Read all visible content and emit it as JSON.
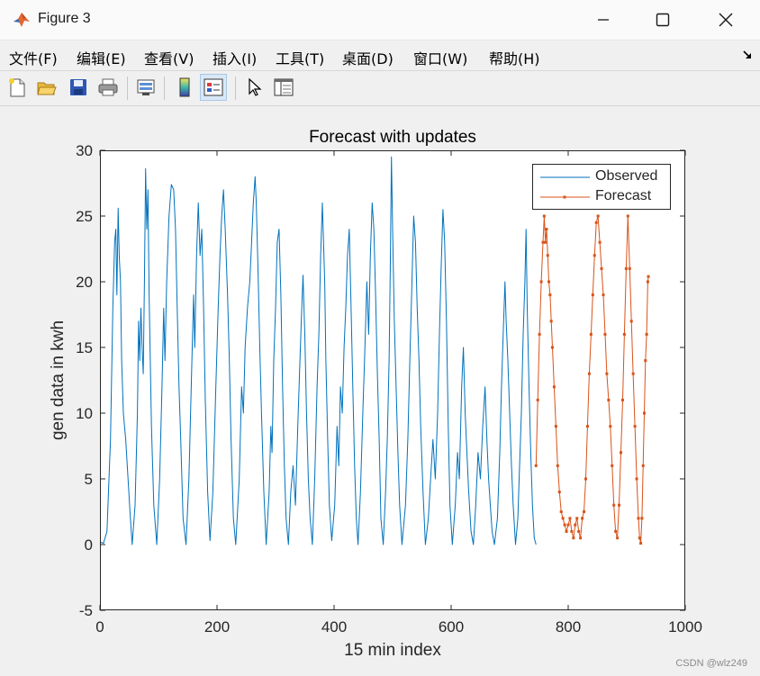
{
  "window": {
    "title": "Figure 3",
    "controls": [
      "minimize-icon",
      "maximize-icon",
      "close-icon"
    ]
  },
  "menubar": {
    "items": [
      "文件(F)",
      "编辑(E)",
      "查看(V)",
      "插入(I)",
      "工具(T)",
      "桌面(D)",
      "窗口(W)",
      "帮助(H)"
    ]
  },
  "toolbar": {
    "buttons": [
      "new-figure-icon",
      "open-folder-icon",
      "save-icon",
      "print-icon",
      "link-plot-icon",
      "colorbar-icon",
      "legend-icon",
      "pointer-icon",
      "property-editor-icon"
    ]
  },
  "colors": {
    "observed": "#0072BD",
    "forecast": "#D95319"
  },
  "watermark": "CSDN @wlz249",
  "chart_data": {
    "type": "line",
    "title": "Forecast with updates",
    "xlabel": "15 min index",
    "ylabel": "gen data in kwh",
    "xlim": [
      0,
      1000
    ],
    "ylim": [
      -5,
      30
    ],
    "xticks": [
      0,
      200,
      400,
      600,
      800,
      1000
    ],
    "yticks": [
      -5,
      0,
      5,
      10,
      15,
      20,
      25,
      30
    ],
    "grid": false,
    "legend_position": "top-right",
    "series": [
      {
        "name": "Observed",
        "marker": "none",
        "points": [
          [
            0,
            0.2
          ],
          [
            6,
            0.1
          ],
          [
            12,
            1
          ],
          [
            18,
            8
          ],
          [
            22,
            18
          ],
          [
            25,
            23
          ],
          [
            27,
            24
          ],
          [
            29,
            19
          ],
          [
            31,
            25.6
          ],
          [
            33,
            22
          ],
          [
            35,
            20
          ],
          [
            37,
            14
          ],
          [
            40,
            10
          ],
          [
            44,
            8
          ],
          [
            48,
            5
          ],
          [
            52,
            2
          ],
          [
            55,
            0
          ],
          [
            60,
            3
          ],
          [
            64,
            10
          ],
          [
            66,
            17
          ],
          [
            68,
            14
          ],
          [
            70,
            18
          ],
          [
            72,
            15
          ],
          [
            74,
            13
          ],
          [
            76,
            20
          ],
          [
            78,
            28.6
          ],
          [
            80,
            24
          ],
          [
            82,
            27
          ],
          [
            84,
            19
          ],
          [
            86,
            14
          ],
          [
            88,
            9
          ],
          [
            92,
            3
          ],
          [
            97,
            0
          ],
          [
            102,
            5
          ],
          [
            106,
            12
          ],
          [
            109,
            18
          ],
          [
            111,
            14
          ],
          [
            114,
            20
          ],
          [
            118,
            25
          ],
          [
            122,
            27.4
          ],
          [
            126,
            27
          ],
          [
            129,
            24
          ],
          [
            132,
            18
          ],
          [
            135,
            12
          ],
          [
            138,
            8
          ],
          [
            142,
            2
          ],
          [
            147,
            0
          ],
          [
            152,
            5
          ],
          [
            157,
            14
          ],
          [
            160,
            19
          ],
          [
            162,
            15
          ],
          [
            165,
            22
          ],
          [
            168,
            26
          ],
          [
            171,
            22
          ],
          [
            174,
            24
          ],
          [
            177,
            18
          ],
          [
            180,
            11
          ],
          [
            184,
            4
          ],
          [
            188,
            0.3
          ],
          [
            193,
            4
          ],
          [
            198,
            12
          ],
          [
            202,
            18
          ],
          [
            205,
            22
          ],
          [
            208,
            25
          ],
          [
            211,
            27
          ],
          [
            214,
            24
          ],
          [
            218,
            19
          ],
          [
            221,
            14
          ],
          [
            224,
            8
          ],
          [
            228,
            2
          ],
          [
            232,
            0
          ],
          [
            238,
            5
          ],
          [
            242,
            12
          ],
          [
            245,
            10
          ],
          [
            248,
            15
          ],
          [
            252,
            18
          ],
          [
            256,
            20
          ],
          [
            259,
            23
          ],
          [
            262,
            26
          ],
          [
            265,
            28
          ],
          [
            267,
            26
          ],
          [
            270,
            21
          ],
          [
            273,
            15
          ],
          [
            276,
            10
          ],
          [
            280,
            4
          ],
          [
            284,
            0
          ],
          [
            289,
            4
          ],
          [
            292,
            9
          ],
          [
            294,
            7
          ],
          [
            297,
            14
          ],
          [
            300,
            18
          ],
          [
            303,
            23
          ],
          [
            306,
            24
          ],
          [
            309,
            19
          ],
          [
            312,
            12
          ],
          [
            315,
            6
          ],
          [
            318,
            2
          ],
          [
            322,
            0
          ],
          [
            326,
            4
          ],
          [
            330,
            6
          ],
          [
            334,
            3
          ],
          [
            338,
            9
          ],
          [
            341,
            13
          ],
          [
            344,
            17
          ],
          [
            347,
            20.5
          ],
          [
            350,
            16
          ],
          [
            353,
            10
          ],
          [
            356,
            5
          ],
          [
            359,
            2
          ],
          [
            363,
            0
          ],
          [
            367,
            5
          ],
          [
            371,
            12
          ],
          [
            374,
            16
          ],
          [
            377,
            22
          ],
          [
            380,
            26
          ],
          [
            382,
            23
          ],
          [
            384,
            20
          ],
          [
            386,
            14
          ],
          [
            389,
            8
          ],
          [
            392,
            3
          ],
          [
            396,
            0.3
          ],
          [
            401,
            3
          ],
          [
            405,
            9
          ],
          [
            408,
            6
          ],
          [
            411,
            12
          ],
          [
            414,
            10
          ],
          [
            417,
            15
          ],
          [
            420,
            18
          ],
          [
            423,
            22
          ],
          [
            426,
            24
          ],
          [
            429,
            18
          ],
          [
            432,
            12
          ],
          [
            435,
            6
          ],
          [
            438,
            2
          ],
          [
            441,
            0
          ],
          [
            445,
            4
          ],
          [
            449,
            10
          ],
          [
            452,
            14
          ],
          [
            456,
            20
          ],
          [
            459,
            16
          ],
          [
            462,
            22
          ],
          [
            465,
            26
          ],
          [
            468,
            24
          ],
          [
            471,
            19
          ],
          [
            474,
            13
          ],
          [
            477,
            8
          ],
          [
            480,
            2
          ],
          [
            484,
            0
          ],
          [
            488,
            4
          ],
          [
            491,
            8
          ],
          [
            494,
            14
          ],
          [
            496,
            21
          ],
          [
            498,
            29.5
          ],
          [
            500,
            24
          ],
          [
            503,
            17
          ],
          [
            506,
            12
          ],
          [
            509,
            7
          ],
          [
            512,
            3
          ],
          [
            516,
            0
          ],
          [
            522,
            3
          ],
          [
            526,
            8
          ],
          [
            530,
            15
          ],
          [
            533,
            20
          ],
          [
            536,
            25
          ],
          [
            539,
            23
          ],
          [
            542,
            18
          ],
          [
            545,
            14
          ],
          [
            548,
            9
          ],
          [
            552,
            4
          ],
          [
            556,
            0
          ],
          [
            561,
            2
          ],
          [
            565,
            5
          ],
          [
            569,
            8
          ],
          [
            573,
            5
          ],
          [
            577,
            10
          ],
          [
            580,
            16
          ],
          [
            583,
            21
          ],
          [
            586,
            25.5
          ],
          [
            589,
            23
          ],
          [
            592,
            17
          ],
          [
            595,
            9
          ],
          [
            598,
            3
          ],
          [
            602,
            0
          ],
          [
            607,
            3
          ],
          [
            611,
            7
          ],
          [
            614,
            5
          ],
          [
            618,
            12
          ],
          [
            621,
            15
          ],
          [
            624,
            10
          ],
          [
            627,
            7
          ],
          [
            630,
            4
          ],
          [
            634,
            1
          ],
          [
            638,
            0
          ],
          [
            642,
            3
          ],
          [
            646,
            7
          ],
          [
            650,
            5
          ],
          [
            654,
            9
          ],
          [
            658,
            12
          ],
          [
            661,
            8
          ],
          [
            664,
            5
          ],
          [
            667,
            3
          ],
          [
            670,
            1
          ],
          [
            674,
            0
          ],
          [
            679,
            2
          ],
          [
            683,
            7
          ],
          [
            686,
            12
          ],
          [
            689,
            16
          ],
          [
            692,
            20
          ],
          [
            694,
            17
          ],
          [
            697,
            14
          ],
          [
            700,
            10
          ],
          [
            703,
            6
          ],
          [
            706,
            3
          ],
          [
            710,
            0
          ],
          [
            714,
            2
          ],
          [
            717,
            6
          ],
          [
            720,
            10
          ],
          [
            723,
            16
          ],
          [
            726,
            20
          ],
          [
            728,
            24
          ],
          [
            730,
            18
          ],
          [
            733,
            12
          ],
          [
            736,
            7
          ],
          [
            739,
            3
          ],
          [
            742,
            0.5
          ],
          [
            745,
            0
          ]
        ]
      },
      {
        "name": "Forecast",
        "marker": "square",
        "points": [
          [
            745,
            6
          ],
          [
            748,
            11
          ],
          [
            751,
            16
          ],
          [
            754,
            20
          ],
          [
            757,
            23
          ],
          [
            759,
            25
          ],
          [
            761,
            23
          ],
          [
            763,
            24
          ],
          [
            765,
            22
          ],
          [
            767,
            20
          ],
          [
            769,
            19
          ],
          [
            771,
            17
          ],
          [
            773,
            15
          ],
          [
            776,
            12
          ],
          [
            779,
            9
          ],
          [
            782,
            6
          ],
          [
            785,
            4
          ],
          [
            788,
            2.5
          ],
          [
            791,
            2
          ],
          [
            794,
            1.5
          ],
          [
            797,
            1
          ],
          [
            800,
            1.5
          ],
          [
            803,
            2
          ],
          [
            806,
            1
          ],
          [
            809,
            0.5
          ],
          [
            812,
            1.5
          ],
          [
            815,
            2
          ],
          [
            818,
            1
          ],
          [
            821,
            0.5
          ],
          [
            824,
            2
          ],
          [
            827,
            2.5
          ],
          [
            830,
            5
          ],
          [
            833,
            9
          ],
          [
            836,
            13
          ],
          [
            839,
            16
          ],
          [
            842,
            19
          ],
          [
            845,
            22
          ],
          [
            848,
            24.5
          ],
          [
            851,
            25
          ],
          [
            854,
            23
          ],
          [
            857,
            21
          ],
          [
            860,
            19
          ],
          [
            863,
            16
          ],
          [
            866,
            13
          ],
          [
            869,
            11
          ],
          [
            872,
            9
          ],
          [
            875,
            6
          ],
          [
            878,
            3
          ],
          [
            881,
            1
          ],
          [
            884,
            0.5
          ],
          [
            887,
            3
          ],
          [
            890,
            7
          ],
          [
            893,
            11
          ],
          [
            896,
            16
          ],
          [
            899,
            21
          ],
          [
            902,
            25
          ],
          [
            905,
            21
          ],
          [
            908,
            17
          ],
          [
            911,
            13
          ],
          [
            914,
            9
          ],
          [
            917,
            5
          ],
          [
            920,
            2
          ],
          [
            922,
            0.5
          ],
          [
            924,
            0.1
          ],
          [
            926,
            2
          ],
          [
            928,
            6
          ],
          [
            930,
            10
          ],
          [
            932,
            14
          ],
          [
            934,
            16
          ],
          [
            936,
            20
          ],
          [
            937,
            20.4
          ]
        ]
      }
    ]
  }
}
